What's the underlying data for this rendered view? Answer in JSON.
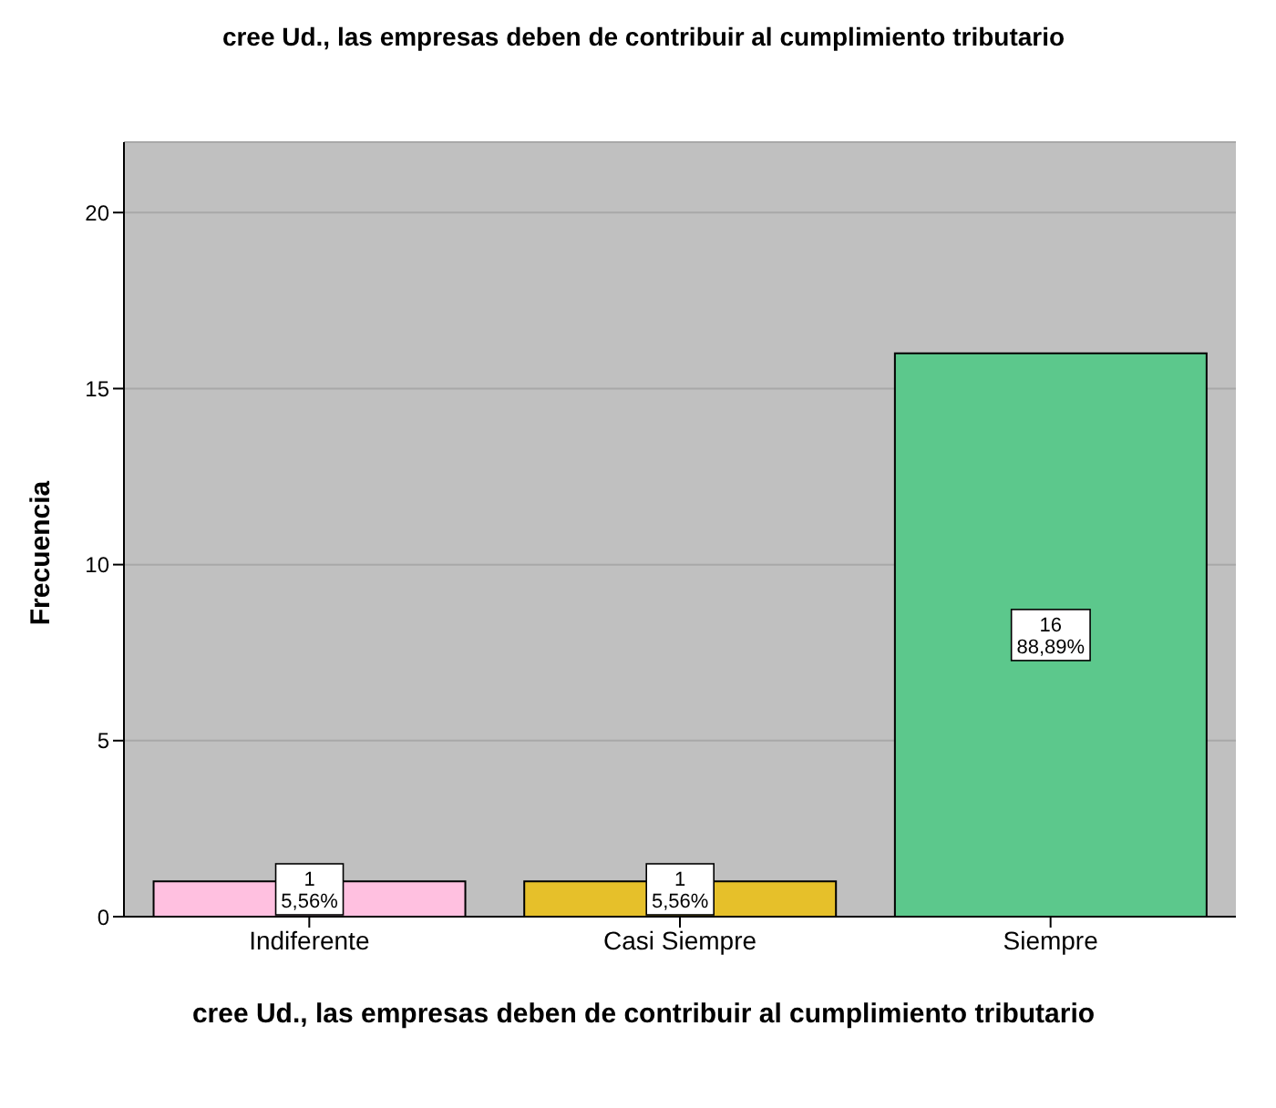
{
  "chart_data": {
    "type": "bar",
    "title": "cree Ud., las empresas deben de contribuir al cumplimiento tributario",
    "xlabel": "cree Ud., las empresas deben de contribuir al cumplimiento tributario",
    "ylabel": "Frecuencia",
    "categories": [
      "Indiferente",
      "Casi Siempre",
      "Siempre"
    ],
    "values": [
      1,
      1,
      16
    ],
    "colors": [
      "#ffc0e0",
      "#e6c02a",
      "#5cc88c"
    ],
    "value_labels": [
      "1\n5,56%",
      "1\n5,56%",
      "16\n88,89%"
    ],
    "ylim": [
      0,
      22
    ],
    "yticks": [
      0,
      5,
      10,
      15,
      20
    ],
    "grid": "y"
  }
}
